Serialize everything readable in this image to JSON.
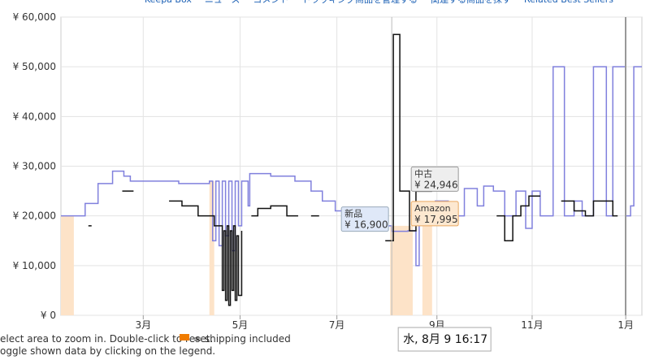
{
  "nav": [
    "Keepa Box",
    "ニュース",
    "コメント",
    "トラッキング商品を管理する",
    "関連する商品を探す",
    "Related Best Sellers"
  ],
  "chart_data": {
    "type": "line",
    "xlim": [
      0,
      360
    ],
    "ylim": [
      0,
      60000
    ],
    "grid": true,
    "xticks": [
      {
        "value": 51,
        "label": "3月"
      },
      {
        "value": 111,
        "label": "5月"
      },
      {
        "value": 171,
        "label": "7月"
      },
      {
        "value": 233,
        "label": "9月"
      },
      {
        "value": 292,
        "label": "11月"
      },
      {
        "value": 350,
        "label": "1月"
      }
    ],
    "yticks": [
      {
        "value": 0,
        "label": "¥ 0"
      },
      {
        "value": 10000,
        "label": "¥ 10,000"
      },
      {
        "value": 20000,
        "label": "¥ 20,000"
      },
      {
        "value": 30000,
        "label": "¥ 30,000"
      },
      {
        "value": 40000,
        "label": "¥ 40,000"
      },
      {
        "value": 50000,
        "label": "¥ 50,000"
      },
      {
        "value": 60000,
        "label": "¥ 60,000"
      }
    ],
    "series": [
      {
        "name": "新品",
        "color": "#8080dd",
        "tooltip": {
          "value": 16900,
          "label": "¥ 16,900"
        },
        "x": [
          0,
          15,
          23,
          32,
          39,
          43,
          73,
          92,
          94,
          96,
          98,
          100,
          102,
          104,
          106,
          108,
          110,
          112,
          116,
          117,
          130,
          145,
          155,
          162,
          170,
          175,
          185,
          195,
          205,
          215,
          220,
          222,
          232,
          240,
          245,
          250,
          258,
          262,
          268,
          275,
          282,
          288,
          292,
          297,
          305,
          312,
          318,
          323,
          330,
          338,
          342,
          350,
          353,
          355,
          360
        ],
        "values": [
          20000,
          22500,
          26500,
          29000,
          28000,
          27000,
          26500,
          27000,
          15000,
          27000,
          14000,
          27000,
          16000,
          27000,
          13000,
          27000,
          18000,
          27000,
          22000,
          28500,
          28000,
          27000,
          25000,
          23000,
          21000,
          19000,
          21500,
          18000,
          16900,
          17000,
          10000,
          20000,
          23000,
          21000,
          20000,
          25500,
          22000,
          26000,
          25000,
          20000,
          25000,
          17500,
          25000,
          20000,
          50000,
          20000,
          23000,
          20000,
          50000,
          20000,
          50000,
          20000,
          22000,
          50000,
          50000
        ]
      },
      {
        "name": "中古",
        "color": "#111111",
        "tooltip": {
          "value": 24946,
          "label": "¥ 24,946"
        },
        "x": [
          17,
          19,
          20,
          38,
          45,
          46,
          67,
          75,
          85,
          95,
          100,
          101,
          102,
          103,
          104,
          105,
          106,
          107,
          108,
          109,
          110,
          112,
          113,
          118,
          122,
          130,
          140,
          147,
          148,
          155,
          160,
          161,
          201,
          206,
          210,
          213,
          216,
          220,
          230,
          231,
          270,
          275,
          280,
          285,
          290,
          297,
          300,
          310,
          318,
          325,
          330,
          340,
          342,
          345
        ],
        "values": [
          18000,
          18000,
          null,
          25000,
          25000,
          null,
          23000,
          22000,
          20000,
          18000,
          5000,
          17000,
          3000,
          18000,
          2000,
          17000,
          5000,
          18000,
          3000,
          16000,
          4000,
          17000,
          null,
          20000,
          21500,
          22000,
          20000,
          20000,
          null,
          20000,
          20000,
          null,
          15000,
          56500,
          25000,
          25000,
          17000,
          24946,
          24946,
          null,
          20000,
          15000,
          20000,
          22000,
          24000,
          24000,
          null,
          23000,
          21000,
          20000,
          23000,
          23000,
          20000,
          20000
        ]
      },
      {
        "name": "Amazon",
        "color": "#fde3c8",
        "tooltip": {
          "value": 17995,
          "label": "¥ 17,995"
        },
        "x": [
          0,
          8,
          9,
          92,
          95,
          96,
          204,
          218,
          219,
          224,
          230
        ],
        "values": [
          20000,
          20000,
          null,
          27000,
          27000,
          null,
          17995,
          17995,
          null,
          17995,
          17995
        ]
      }
    ],
    "cursor": {
      "x": 205,
      "label": "水, 8月 9 16:17"
    }
  },
  "footer": [
    "elect area to zoom in. Double-click to reset.",
    "= shipping included",
    "oggle shown data by clicking on the legend."
  ]
}
